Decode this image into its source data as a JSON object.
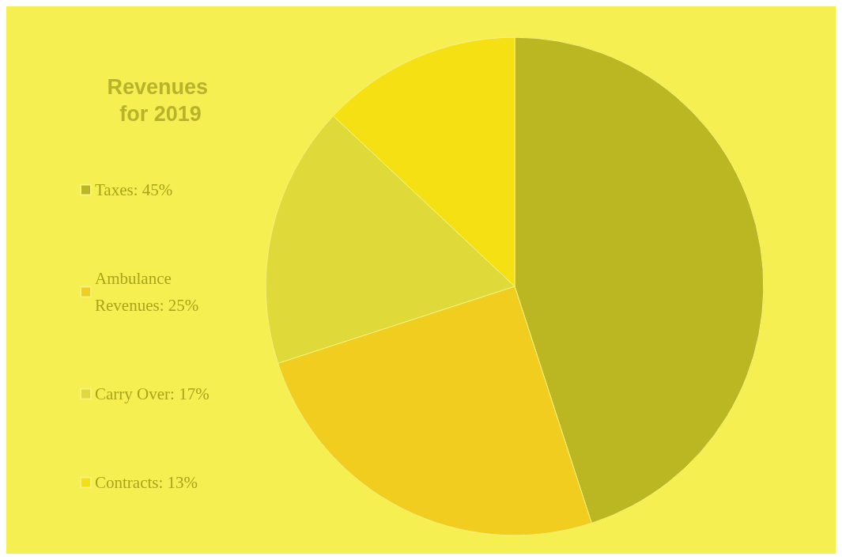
{
  "chart_data": {
    "type": "pie",
    "title": "Revenues for 2019",
    "categories": [
      "Taxes: 45%",
      "Ambulance Revenues: 25%",
      "Carry Over: 17%",
      "Contracts: 13%"
    ],
    "values": [
      45,
      25,
      17,
      13
    ],
    "colors": [
      "#bab722",
      "#f0cd1e",
      "#dfd93a",
      "#f5e013"
    ],
    "legend": "left"
  }
}
